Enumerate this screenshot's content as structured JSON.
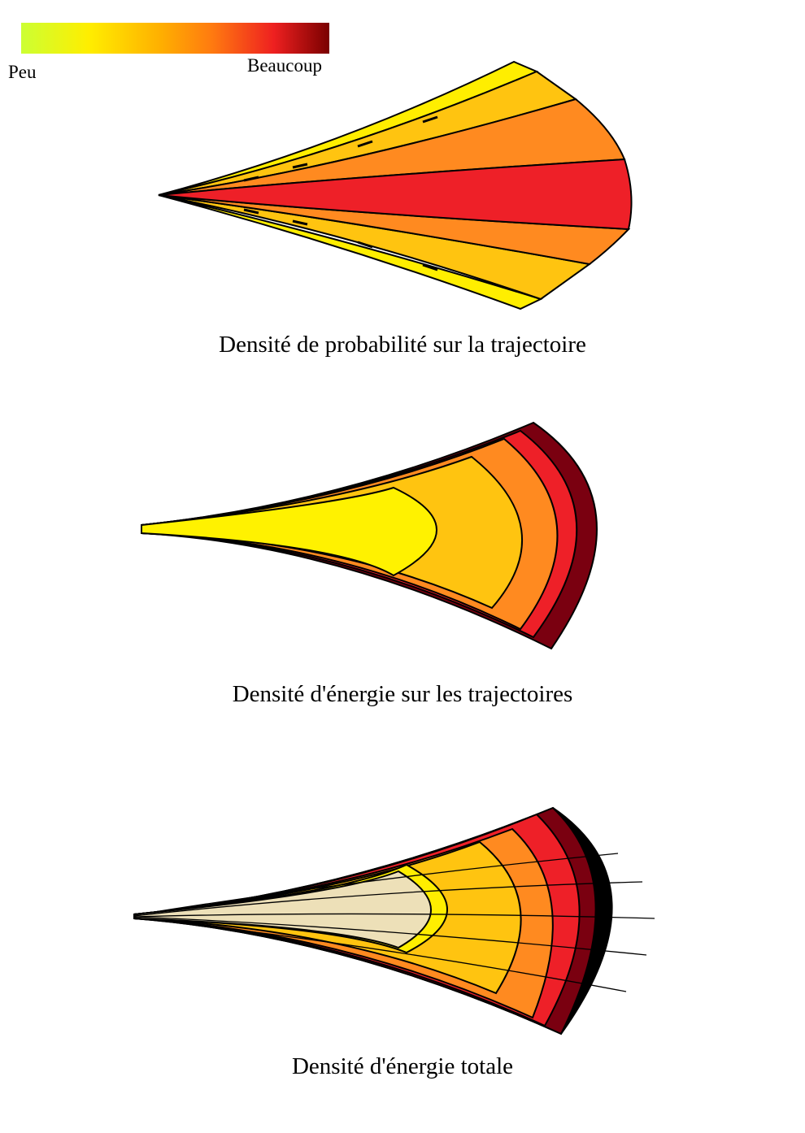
{
  "legend": {
    "low_label": "Peu",
    "high_label": "Beaucoup",
    "gradient_colors": [
      "#ccff33",
      "#ffee00",
      "#ffb000",
      "#ff7a10",
      "#ee2020",
      "#7a0000"
    ]
  },
  "panels": [
    {
      "caption": "Densité de probabilité sur la trajectoire",
      "band_colors": [
        "#ffee00",
        "#ffc410",
        "#ff8a20",
        "#ee2028",
        "#ff8a20",
        "#ffc410",
        "#ffee00"
      ]
    },
    {
      "caption": "Densité d'énergie sur les trajectoires",
      "band_colors": [
        "#fff200",
        "#ffc410",
        "#ff8a20",
        "#ee2028",
        "#7a0010"
      ]
    },
    {
      "caption": "Densité d'énergie totale",
      "band_colors": [
        "#ede0b8",
        "#ffee00",
        "#ffc410",
        "#ff8a20",
        "#ee2028",
        "#7a0010",
        "#000000"
      ]
    }
  ]
}
